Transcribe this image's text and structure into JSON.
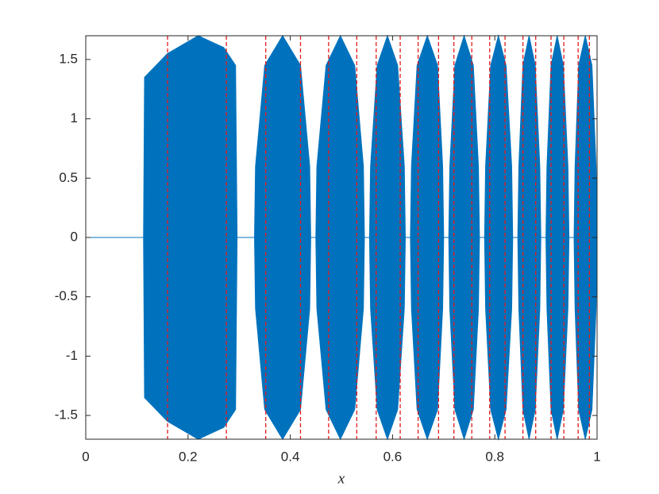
{
  "chart_data": {
    "type": "band",
    "xlabel": "x",
    "x": [
      0,
      0.113,
      0.115,
      0.16,
      0.22,
      0.27,
      0.293,
      0.296,
      0.33,
      0.332,
      0.35,
      0.385,
      0.42,
      0.438,
      0.44,
      0.45,
      0.452,
      0.47,
      0.498,
      0.526,
      0.543,
      0.545,
      0.555,
      0.557,
      0.57,
      0.59,
      0.61,
      0.623,
      0.625,
      0.635,
      0.637,
      0.648,
      0.668,
      0.688,
      0.698,
      0.7,
      0.71,
      0.712,
      0.722,
      0.74,
      0.758,
      0.768,
      0.77,
      0.78,
      0.782,
      0.792,
      0.807,
      0.822,
      0.833,
      0.835,
      0.845,
      0.847,
      0.855,
      0.867,
      0.879,
      0.888,
      0.89,
      0.9,
      0.902,
      0.91,
      0.922,
      0.934,
      0.943,
      0.945,
      0.955,
      0.957,
      0.964,
      0.977,
      0.99,
      0.998,
      1.0
    ],
    "upper": [
      0,
      0,
      1.35,
      1.55,
      1.7,
      1.6,
      1.45,
      0,
      0,
      0.6,
      1.45,
      1.7,
      1.45,
      0.6,
      0,
      0,
      0.6,
      1.45,
      1.7,
      1.45,
      0.6,
      0,
      0,
      0.6,
      1.45,
      1.7,
      1.45,
      0.6,
      0,
      0,
      0.6,
      1.45,
      1.7,
      1.45,
      0.6,
      0,
      0,
      0.6,
      1.45,
      1.7,
      1.45,
      0.6,
      0,
      0,
      0.6,
      1.45,
      1.7,
      1.45,
      0.6,
      0,
      0,
      0.6,
      1.45,
      1.7,
      1.45,
      0.6,
      0,
      0,
      0.6,
      1.45,
      1.7,
      1.45,
      0.6,
      0,
      0,
      0.6,
      1.45,
      1.7,
      1.45,
      0.6,
      0
    ],
    "lower": [
      0,
      0,
      -1.35,
      -1.55,
      -1.7,
      -1.6,
      -1.45,
      0,
      0,
      -0.6,
      -1.45,
      -1.7,
      -1.45,
      -0.6,
      0,
      0,
      -0.6,
      -1.45,
      -1.7,
      -1.45,
      -0.6,
      0,
      0,
      -0.6,
      -1.45,
      -1.7,
      -1.45,
      -0.6,
      0,
      0,
      -0.6,
      -1.45,
      -1.7,
      -1.45,
      -0.6,
      0,
      0,
      -0.6,
      -1.45,
      -1.7,
      -1.45,
      -0.6,
      0,
      0,
      -0.6,
      -1.45,
      -1.7,
      -1.45,
      -0.6,
      0,
      0,
      -0.6,
      -1.45,
      -1.7,
      -1.45,
      -0.6,
      0,
      0,
      -0.6,
      -1.45,
      -1.7,
      -1.45,
      -0.6,
      0,
      0,
      -0.6,
      -1.45,
      -1.7,
      -1.45,
      -0.6,
      0
    ],
    "color": "#0072bd",
    "vlines": [
      0.16,
      0.275,
      0.352,
      0.42,
      0.475,
      0.53,
      0.568,
      0.615,
      0.65,
      0.69,
      0.72,
      0.755,
      0.79,
      0.82,
      0.855,
      0.88,
      0.91,
      0.935,
      0.963,
      0.985
    ],
    "vline_color": "#e41a1c",
    "xlim": [
      0,
      1
    ],
    "ylim": [
      -1.7,
      1.7
    ],
    "xticks": [
      0,
      0.2,
      0.4,
      0.6,
      0.8,
      1
    ],
    "yticks": [
      -1.5,
      -1,
      -0.5,
      0,
      0.5,
      1,
      1.5
    ]
  }
}
